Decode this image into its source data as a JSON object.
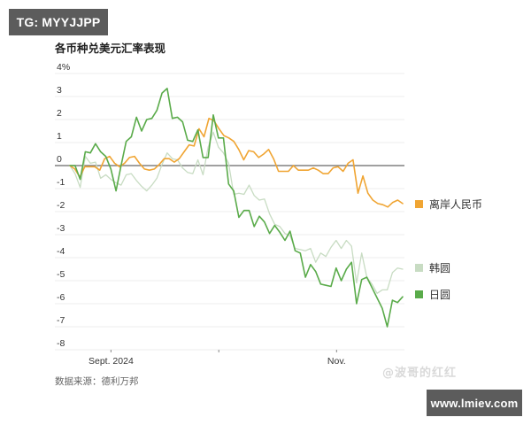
{
  "badges": {
    "top_left": "TG: MYYJJPP",
    "bottom_right": "www.lmiev.com"
  },
  "watermark": "@波哥的红红",
  "source": "数据来源：德利万邦",
  "colors": {
    "cnh": "#f0a533",
    "krw": "#c8dcc3",
    "jpy": "#5aab4a",
    "zero_line": "#808080",
    "grid": "#ececec"
  },
  "chart_data": {
    "type": "line",
    "title": "各币种兑美元汇率表现",
    "xlabel": "",
    "ylabel": "",
    "y_unit": "%",
    "ylim": [
      -8,
      4
    ],
    "yticks": [
      "4%",
      "3",
      "2",
      "1",
      "0",
      "-1",
      "-2",
      "-3",
      "-4",
      "-5",
      "-6",
      "-7",
      "-8"
    ],
    "xticks": [
      {
        "label": "Sept. 2024",
        "position": 0.134
      },
      {
        "label": "",
        "position": 0.458
      },
      {
        "label": "Nov.",
        "position": 0.812
      }
    ],
    "grid": true,
    "legend_position": "right (inline labels at line ends)",
    "x_note": "Daily observations from ~late Aug 2024 to mid Nov 2024; x is normalized 0..1",
    "series": [
      {
        "name": "离岸人民币",
        "key": "cnh",
        "values": [
          0,
          -0.15,
          -0.5,
          -0.05,
          -0.05,
          -0.05,
          -0.2,
          0.3,
          0.4,
          0.1,
          -0.05,
          0.1,
          0.35,
          0.4,
          0.1,
          -0.15,
          -0.2,
          -0.15,
          0.05,
          0.3,
          0.3,
          0.15,
          0.3,
          0.6,
          0.9,
          0.85,
          1.6,
          1.25,
          2.05,
          1.95,
          1.6,
          1.3,
          1.2,
          1.05,
          0.7,
          0.25,
          0.65,
          0.6,
          0.35,
          0.5,
          0.7,
          0.3,
          -0.25,
          -0.25,
          -0.25,
          0,
          -0.2,
          -0.2,
          -0.2,
          -0.1,
          -0.2,
          -0.35,
          -0.35,
          -0.1,
          -0.05,
          -0.25,
          0.1,
          0.25,
          -1.2,
          -0.45,
          -1.2,
          -1.5,
          -1.65,
          -1.7,
          -1.8,
          -1.6,
          -1.5,
          -1.65
        ]
      },
      {
        "name": "韩圆",
        "key": "krw",
        "values": [
          0,
          -0.35,
          -0.95,
          0.4,
          0.1,
          0.15,
          -0.55,
          -0.4,
          -0.6,
          -0.75,
          -0.85,
          -0.4,
          -0.35,
          -0.65,
          -0.9,
          -1.1,
          -0.85,
          -0.55,
          0.05,
          0.55,
          0.3,
          0.25,
          -0.1,
          -0.3,
          -0.35,
          0.25,
          -0.4,
          0.8,
          1.45,
          0.8,
          0.55,
          0.1,
          -1.25,
          -1.2,
          -1.25,
          -0.85,
          -1.3,
          -1.5,
          -1.45,
          -2.1,
          -2.55,
          -2.65,
          -2.95,
          -3.05,
          -3.6,
          -3.65,
          -3.7,
          -3.6,
          -4.2,
          -3.8,
          -3.95,
          -3.55,
          -3.25,
          -3.6,
          -3.25,
          -3.5,
          -5.1,
          -3.8,
          -4.85,
          -5.15,
          -5.55,
          -5.4,
          -5.4,
          -4.65,
          -4.45,
          -4.5
        ]
      },
      {
        "name": "日圆",
        "key": "jpy",
        "values": [
          0,
          0,
          -0.6,
          0.6,
          0.55,
          0.95,
          0.6,
          0.4,
          -0.15,
          -1.1,
          0,
          1.05,
          1.25,
          2.1,
          1.5,
          2.0,
          2.05,
          2.4,
          3.15,
          3.35,
          2.05,
          2.1,
          1.9,
          1.1,
          1.05,
          1.55,
          0.35,
          0.35,
          2.2,
          1.2,
          1.2,
          -0.8,
          -1.1,
          -2.25,
          -1.95,
          -1.95,
          -2.65,
          -2.2,
          -2.45,
          -2.95,
          -2.6,
          -2.9,
          -3.25,
          -2.85,
          -3.7,
          -3.8,
          -4.85,
          -4.3,
          -4.6,
          -5.15,
          -5.2,
          -5.25,
          -4.45,
          -5.0,
          -4.5,
          -4.2,
          -6.0,
          -4.95,
          -4.85,
          -5.3,
          -5.75,
          -6.2,
          -7.0,
          -5.85,
          -5.95,
          -5.7
        ]
      }
    ]
  }
}
